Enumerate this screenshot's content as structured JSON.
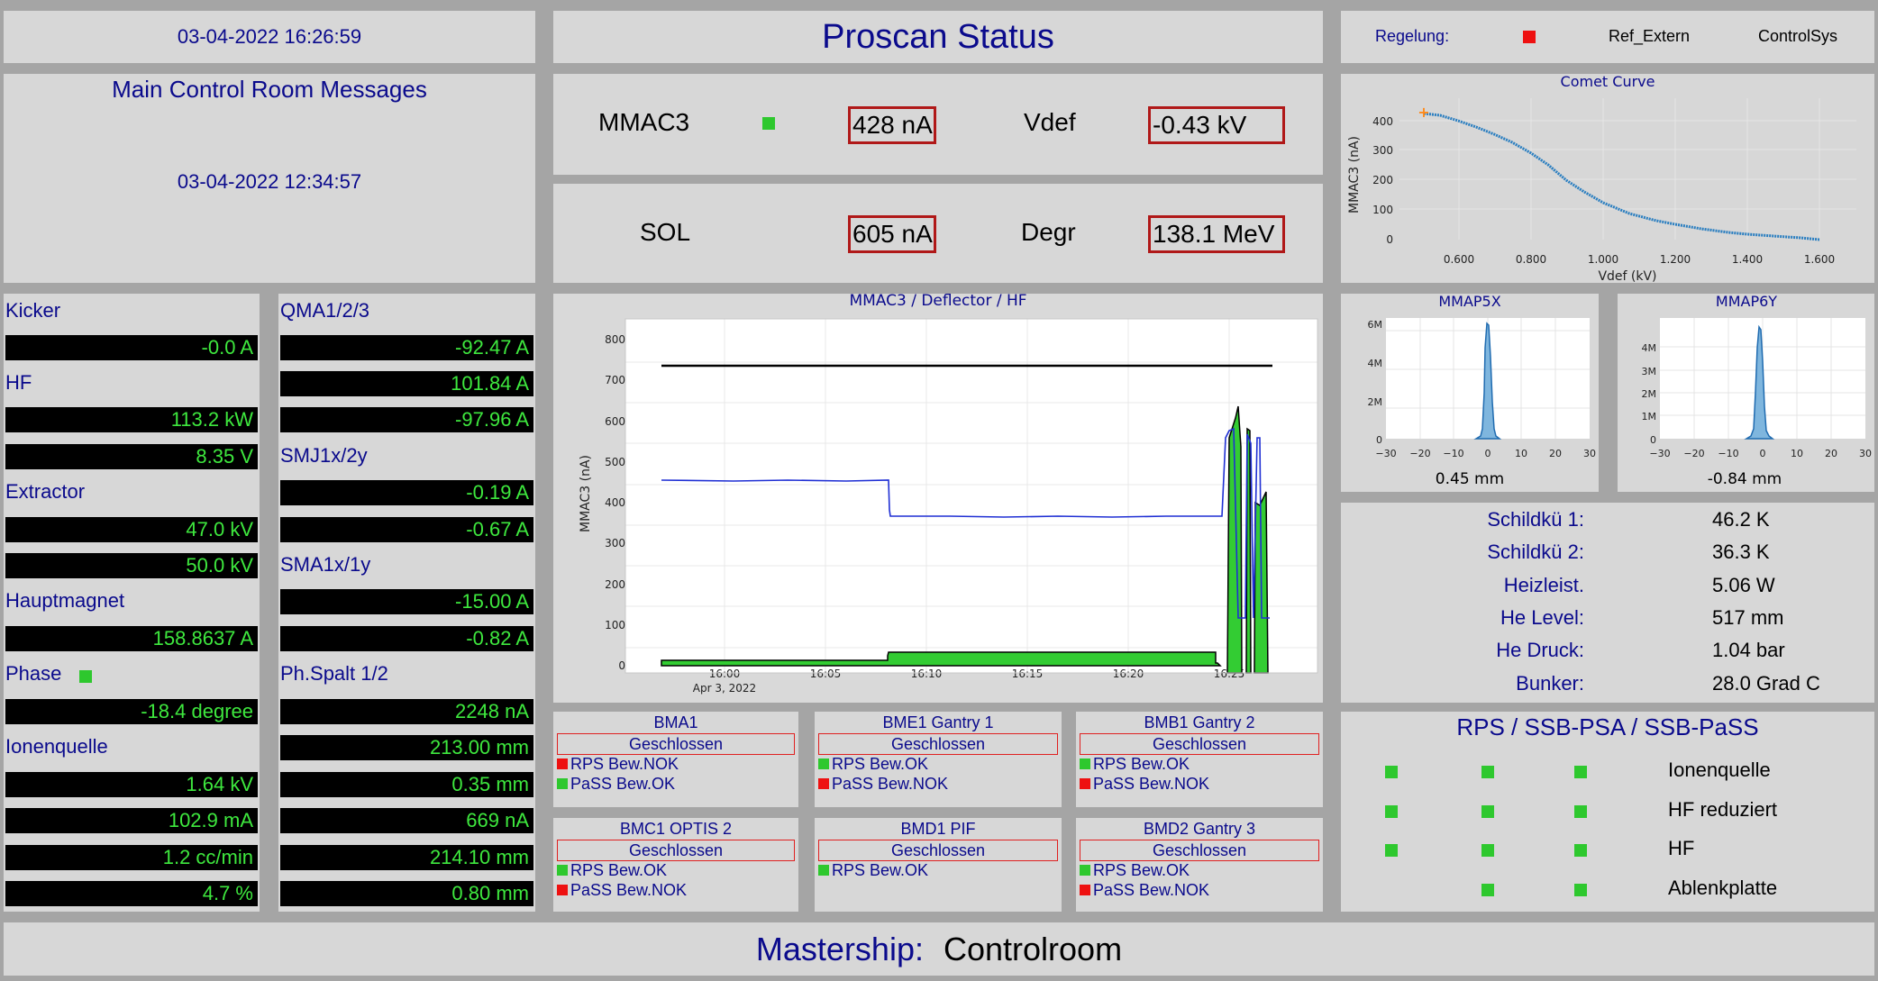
{
  "header": {
    "datetime": "03-04-2022 16:26:59",
    "title": "Proscan Status",
    "regelung_label": "Regelung:",
    "regelung_status_color": "#ee1111",
    "ref_label": "Ref_Extern",
    "control_label": "ControlSys"
  },
  "messages": {
    "title": "Main Control Room Messages",
    "timestamp": "03-04-2022 12:34:57"
  },
  "beam": {
    "mmac3_label": "MMAC3",
    "mmac3_value": "428 nA",
    "vdef_label": "Vdef",
    "vdef_value": "-0.43 kV",
    "sol_label": "SOL",
    "sol_value": "605 nA",
    "degr_label": "Degr",
    "degr_value": "138.1 MeV"
  },
  "left_col": {
    "kicker_label": "Kicker",
    "kicker_value": "-0.0 A",
    "hf_label": "HF",
    "hf_value1": "113.2 kW",
    "hf_value2": "8.35 V",
    "extractor_label": "Extractor",
    "extractor_value1": "47.0 kV",
    "extractor_value2": "50.0 kV",
    "hauptmagnet_label": "Hauptmagnet",
    "hauptmagnet_value": "158.8637 A",
    "phase_label": "Phase",
    "phase_value": "-18.4 degree",
    "ionenquelle_label": "Ionenquelle",
    "ionenquelle_values": [
      "1.64 kV",
      "102.9 mA",
      "1.2 cc/min",
      "4.7 %"
    ]
  },
  "right_col": {
    "qma_label": "QMA1/2/3",
    "qma_values": [
      "-92.47 A",
      "101.84 A",
      "-97.96 A"
    ],
    "smj_label": "SMJ1x/2y",
    "smj_values": [
      "-0.19 A",
      "-0.67 A"
    ],
    "sma_label": "SMA1x/1y",
    "sma_values": [
      "-15.00 A",
      "-0.82 A"
    ],
    "phspalt_label": "Ph.Spalt 1/2",
    "phspalt_values": [
      "2248 nA",
      "213.00 mm",
      "0.35 mm",
      "669 nA",
      "214.10 mm",
      "0.80 mm"
    ]
  },
  "main_chart": {
    "title": "MMAC3 / Deflector / HF",
    "ylabel": "MMAC3 (nA)",
    "date_label": "Apr 3, 2022",
    "x_ticks": [
      "16:00",
      "16:05",
      "16:10",
      "16:15",
      "16:20",
      "16:25"
    ],
    "y_ticks": [
      "0",
      "100",
      "200",
      "300",
      "400",
      "500",
      "600",
      "700",
      "800"
    ]
  },
  "comet": {
    "title": "Comet Curve",
    "xlabel": "Vdef (kV)",
    "ylabel": "MMAC3 (nA)",
    "x_ticks": [
      "0.600",
      "0.800",
      "1.000",
      "1.200",
      "1.400",
      "1.600"
    ],
    "y_ticks": [
      "0",
      "100",
      "200",
      "300",
      "400"
    ]
  },
  "profile_x": {
    "title": "MMAP5X",
    "value": "0.45 mm",
    "y_ticks": [
      "0",
      "2M",
      "4M",
      "6M"
    ],
    "x_ticks": [
      "−30",
      "−20",
      "−10",
      "0",
      "10",
      "20",
      "30"
    ]
  },
  "profile_y": {
    "title": "MMAP6Y",
    "value": "-0.84 mm",
    "y_ticks": [
      "0",
      "1M",
      "2M",
      "3M",
      "4M"
    ],
    "x_ticks": [
      "−30",
      "−20",
      "−10",
      "0",
      "10",
      "20",
      "30"
    ]
  },
  "cryo": [
    {
      "label": "Schildkü 1:",
      "value": "46.2 K"
    },
    {
      "label": "Schildkü 2:",
      "value": "36.3 K"
    },
    {
      "label": "Heizleist.",
      "value": "5.06 W"
    },
    {
      "label": "He Level:",
      "value": "517 mm"
    },
    {
      "label": "He Druck:",
      "value": "1.04 bar"
    },
    {
      "label": "Bunker:",
      "value": "28.0 Grad C"
    }
  ],
  "beamlines": [
    {
      "name": "BMA1",
      "state": "Geschlossen",
      "rows": [
        {
          "text": "RPS Bew.NOK",
          "color": "#ee1111"
        },
        {
          "text": "PaSS Bew.OK",
          "color": "#2ec82e"
        }
      ]
    },
    {
      "name": "BME1 Gantry 1",
      "state": "Geschlossen",
      "rows": [
        {
          "text": "RPS Bew.OK",
          "color": "#2ec82e"
        },
        {
          "text": "PaSS Bew.NOK",
          "color": "#ee1111"
        }
      ]
    },
    {
      "name": "BMB1 Gantry 2",
      "state": "Geschlossen",
      "rows": [
        {
          "text": "RPS Bew.OK",
          "color": "#2ec82e"
        },
        {
          "text": "PaSS Bew.NOK",
          "color": "#ee1111"
        }
      ]
    },
    {
      "name": "BMC1 OPTIS 2",
      "state": "Geschlossen",
      "rows": [
        {
          "text": "RPS Bew.OK",
          "color": "#2ec82e"
        },
        {
          "text": "PaSS Bew.NOK",
          "color": "#ee1111"
        }
      ]
    },
    {
      "name": "BMD1 PIF",
      "state": "Geschlossen",
      "rows": [
        {
          "text": "RPS Bew.OK",
          "color": "#2ec82e"
        }
      ]
    },
    {
      "name": "BMD2 Gantry 3",
      "state": "Geschlossen",
      "rows": [
        {
          "text": "RPS Bew.OK",
          "color": "#2ec82e"
        },
        {
          "text": "PaSS Bew.NOK",
          "color": "#ee1111"
        }
      ]
    }
  ],
  "rps": {
    "title": "RPS / SSB-PSA / SSB-PaSS",
    "rows": [
      {
        "label": "Ionenquelle",
        "indicators": [
          "#2ec82e",
          "#2ec82e",
          "#2ec82e"
        ]
      },
      {
        "label": "HF reduziert",
        "indicators": [
          "#2ec82e",
          "#2ec82e",
          "#2ec82e"
        ]
      },
      {
        "label": "HF",
        "indicators": [
          "#2ec82e",
          "#2ec82e",
          "#2ec82e"
        ]
      },
      {
        "label": "Ablenkplatte",
        "indicators": [
          "",
          "#2ec82e",
          "#2ec82e"
        ]
      }
    ]
  },
  "footer": {
    "label": "Mastership:",
    "value": "Controlroom"
  }
}
